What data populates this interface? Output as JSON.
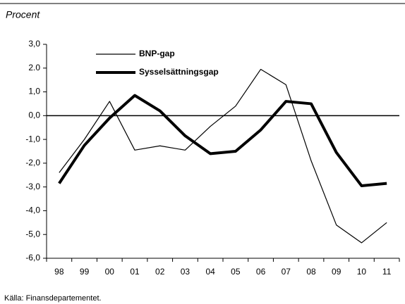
{
  "chart_data": {
    "type": "line",
    "unit_label": "Procent",
    "source": "Källa: Finansdepartementet.",
    "categories": [
      "98",
      "99",
      "00",
      "01",
      "02",
      "03",
      "04",
      "05",
      "06",
      "07",
      "08",
      "09",
      "10",
      "11"
    ],
    "series": [
      {
        "name": "BNP-gap",
        "color": "#000000",
        "width": 1.2,
        "values": [
          -2.4,
          -1.0,
          0.6,
          -1.45,
          -1.27,
          -1.45,
          -0.45,
          0.4,
          1.95,
          1.3,
          -1.9,
          -4.6,
          -5.35,
          -4.5
        ]
      },
      {
        "name": "Sysselsättningsgap",
        "color": "#000000",
        "width": 4,
        "values": [
          -2.85,
          -1.25,
          -0.1,
          0.85,
          0.2,
          -0.85,
          -1.6,
          -1.5,
          -0.6,
          0.6,
          0.5,
          -1.55,
          -2.95,
          -2.85
        ]
      }
    ],
    "ylim": [
      -6,
      3
    ],
    "yticks": [
      {
        "value": 3,
        "label": "3,0"
      },
      {
        "value": 2,
        "label": "2.0"
      },
      {
        "value": 1,
        "label": "1,0"
      },
      {
        "value": 0,
        "label": "0,0"
      },
      {
        "value": -1,
        "label": "-1,0"
      },
      {
        "value": -2,
        "label": "-2,0"
      },
      {
        "value": -3,
        "label": "-3,0"
      },
      {
        "value": -4,
        "label": "-4,0"
      },
      {
        "value": -5,
        "label": "-5,0"
      },
      {
        "value": -6,
        "label": "-6,0"
      }
    ],
    "grid": false,
    "legend": "top-left"
  }
}
